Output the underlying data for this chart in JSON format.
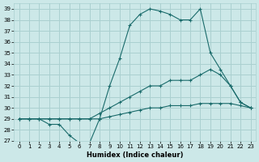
{
  "xlabel": "Humidex (Indice chaleur)",
  "ylabel": "",
  "background_color": "#cce8e8",
  "grid_color": "#aad0d0",
  "line_color": "#1a6b6b",
  "xlim": [
    -0.5,
    23.5
  ],
  "ylim": [
    27,
    39.5
  ],
  "yticks": [
    27,
    28,
    29,
    30,
    31,
    32,
    33,
    34,
    35,
    36,
    37,
    38,
    39
  ],
  "xticks": [
    0,
    1,
    2,
    3,
    4,
    5,
    6,
    7,
    8,
    9,
    10,
    11,
    12,
    13,
    14,
    15,
    16,
    17,
    18,
    19,
    20,
    21,
    22,
    23
  ],
  "line1_x": [
    0,
    1,
    2,
    3,
    4,
    5,
    6,
    7,
    8,
    9,
    10,
    11,
    12,
    13,
    14,
    15,
    16,
    17,
    18,
    19,
    20,
    21,
    22,
    23
  ],
  "line1_y": [
    29.0,
    29.0,
    29.0,
    28.5,
    28.5,
    27.5,
    26.8,
    26.8,
    29.0,
    32.0,
    34.5,
    37.5,
    38.5,
    39.0,
    38.8,
    38.5,
    38.0,
    38.0,
    39.0,
    35.0,
    33.5,
    32.0,
    30.5,
    30.0
  ],
  "line2_x": [
    0,
    1,
    2,
    3,
    4,
    5,
    6,
    7,
    8,
    9,
    10,
    11,
    12,
    13,
    14,
    15,
    16,
    17,
    18,
    19,
    20,
    21,
    22,
    23
  ],
  "line2_y": [
    29.0,
    29.0,
    29.0,
    29.0,
    29.0,
    29.0,
    29.0,
    29.0,
    29.5,
    30.0,
    30.5,
    31.0,
    31.5,
    32.0,
    32.0,
    32.5,
    32.5,
    32.5,
    33.0,
    33.5,
    33.0,
    32.0,
    30.5,
    30.0
  ],
  "line3_x": [
    0,
    1,
    2,
    3,
    4,
    5,
    6,
    7,
    8,
    9,
    10,
    11,
    12,
    13,
    14,
    15,
    16,
    17,
    18,
    19,
    20,
    21,
    22,
    23
  ],
  "line3_y": [
    29.0,
    29.0,
    29.0,
    29.0,
    29.0,
    29.0,
    29.0,
    29.0,
    29.0,
    29.2,
    29.4,
    29.6,
    29.8,
    30.0,
    30.0,
    30.2,
    30.2,
    30.2,
    30.4,
    30.4,
    30.4,
    30.4,
    30.2,
    30.0
  ]
}
